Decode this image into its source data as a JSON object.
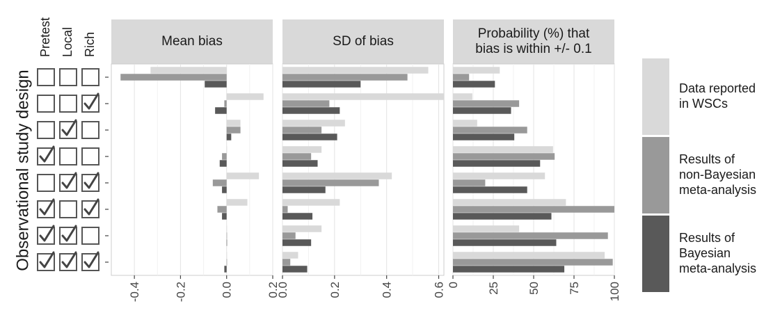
{
  "chart_data": {
    "type": "bar",
    "orientation": "horizontal",
    "ylabel": "Observational study design",
    "design_columns": [
      "Pretest",
      "Local",
      "Rich"
    ],
    "designs": [
      [
        false,
        false,
        false
      ],
      [
        false,
        false,
        true
      ],
      [
        false,
        true,
        false
      ],
      [
        true,
        false,
        false
      ],
      [
        false,
        true,
        true
      ],
      [
        true,
        false,
        true
      ],
      [
        true,
        true,
        false
      ],
      [
        true,
        true,
        true
      ]
    ],
    "series_names": [
      "Data reported in WSCs",
      "Results of non-Bayesian meta-analysis",
      "Results of Bayesian meta-analysis"
    ],
    "series_colors": [
      "#d9d9d9",
      "#999999",
      "#595959"
    ],
    "legend": {
      "position": "right",
      "items": [
        [
          "Data reported",
          "in WSCs"
        ],
        [
          "Results of",
          "non-Bayesian",
          "meta-analysis"
        ],
        [
          "Results of",
          "Bayesian",
          "meta-analysis"
        ]
      ]
    },
    "grid": true,
    "panels": [
      {
        "title": [
          "Mean bias"
        ],
        "xlim": [
          -0.5,
          0.2
        ],
        "ticks": [
          -0.4,
          -0.2,
          0.0,
          0.2
        ],
        "tick_labels": [
          "-0.4",
          "-0.2",
          "0.0",
          "0.2"
        ],
        "series": [
          {
            "values": [
              -0.33,
              0.16,
              0.06,
              0.0,
              0.14,
              0.09,
              0.0,
              0.0
            ]
          },
          {
            "values": [
              -0.46,
              -0.01,
              0.06,
              -0.02,
              -0.06,
              -0.04,
              0.0,
              0.0
            ]
          },
          {
            "values": [
              -0.095,
              -0.05,
              0.02,
              -0.03,
              -0.02,
              -0.02,
              0.0,
              -0.01
            ]
          }
        ]
      },
      {
        "title": [
          "SD of bias"
        ],
        "xlim": [
          0,
          0.62
        ],
        "ticks": [
          0.0,
          0.2,
          0.4,
          0.6
        ],
        "tick_labels": [
          "0.0",
          "0.2",
          "0.4",
          "0.6"
        ],
        "series": [
          {
            "values": [
              0.56,
              0.62,
              0.24,
              0.15,
              0.42,
              0.22,
              0.15,
              0.06
            ]
          },
          {
            "values": [
              0.48,
              0.18,
              0.15,
              0.11,
              0.37,
              0.02,
              0.05,
              0.03
            ]
          },
          {
            "values": [
              0.3,
              0.22,
              0.21,
              0.135,
              0.165,
              0.115,
              0.11,
              0.095
            ]
          }
        ]
      },
      {
        "title": [
          "Probability (%) that",
          "bias is within +/- 0.1"
        ],
        "xlim": [
          0,
          100
        ],
        "ticks": [
          0,
          25,
          50,
          75,
          100
        ],
        "tick_labels": [
          "0",
          "25",
          "50",
          "75",
          "100"
        ],
        "series": [
          {
            "values": [
              29,
              12,
              15,
              62,
              57,
              70,
              41,
              94
            ]
          },
          {
            "values": [
              10,
              41,
              46,
              63,
              20,
              100,
              96,
              99
            ]
          },
          {
            "values": [
              26,
              36,
              38,
              54,
              46,
              61,
              64,
              69
            ]
          }
        ]
      }
    ]
  }
}
